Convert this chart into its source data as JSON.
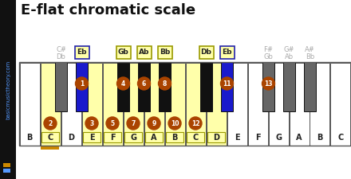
{
  "title": "E-flat chromatic scale",
  "title_fontsize": 13,
  "bg_color": "#ffffff",
  "sidebar_color": "#111111",
  "sidebar_text": "basicmusictheory.com",
  "sidebar_text_color": "#5599ff",
  "sidebar_dot1_color": "#cc8800",
  "sidebar_dot2_color": "#5599ff",
  "white_key_color": "#ffffff",
  "black_key_inactive_color": "#666666",
  "black_key_active_color": "#1a1acc",
  "black_key_scale_color": "#111111",
  "highlight_fill": "#ffffaa",
  "highlight_border": "#999900",
  "circle_color": "#aa4400",
  "circle_text_color": "#ffffff",
  "label_bg": "#ffffaa",
  "label_border_blue": "#2222aa",
  "label_border_yellow": "#999900",
  "note_names_gray": "#aaaaaa",
  "white_notes": [
    "B",
    "C",
    "D",
    "E",
    "F",
    "G",
    "A",
    "B",
    "C",
    "D",
    "E",
    "F",
    "G",
    "A",
    "B",
    "C"
  ],
  "highlighted_white_indices": [
    1,
    3,
    4,
    5,
    6,
    7,
    8,
    9
  ],
  "white_circle_data": [
    [
      1,
      "2"
    ],
    [
      3,
      "3"
    ],
    [
      4,
      "5"
    ],
    [
      5,
      "7"
    ],
    [
      6,
      "9"
    ],
    [
      7,
      "10"
    ],
    [
      8,
      "12"
    ]
  ],
  "black_circle_data": [
    [
      1,
      "1"
    ],
    [
      2,
      "4"
    ],
    [
      3,
      "6"
    ],
    [
      4,
      "8"
    ],
    [
      6,
      "11"
    ],
    [
      7,
      "13"
    ]
  ],
  "black_key_defs": [
    {
      "wi": 1,
      "type": "inactive"
    },
    {
      "wi": 2,
      "type": "blue"
    },
    {
      "wi": 4,
      "type": "scale"
    },
    {
      "wi": 5,
      "type": "scale"
    },
    {
      "wi": 6,
      "type": "scale"
    },
    {
      "wi": 8,
      "type": "scale"
    },
    {
      "wi": 9,
      "type": "blue"
    },
    {
      "wi": 11,
      "type": "inactive"
    },
    {
      "wi": 12,
      "type": "inactive"
    },
    {
      "wi": 13,
      "type": "inactive"
    }
  ],
  "gray_label_left": [
    {
      "wi": 1,
      "lines": [
        "C#",
        "Db"
      ]
    }
  ],
  "box_labels_left": [
    {
      "wi": 2,
      "label": "Eb",
      "blue": true
    },
    {
      "wi": 4,
      "label": "Gb",
      "blue": false
    },
    {
      "wi": 5,
      "label": "Ab",
      "blue": false
    },
    {
      "wi": 6,
      "label": "Bb",
      "blue": false
    },
    {
      "wi": 8,
      "label": "Db",
      "blue": false
    },
    {
      "wi": 9,
      "label": "Eb",
      "blue": true
    }
  ],
  "gray_label_right": [
    {
      "wi": 11,
      "lines": [
        "F#",
        "Gb"
      ]
    },
    {
      "wi": 12,
      "lines": [
        "G#",
        "Ab"
      ]
    },
    {
      "wi": 13,
      "lines": [
        "A#",
        "Bb"
      ]
    }
  ],
  "orange_underline_wi": 1
}
